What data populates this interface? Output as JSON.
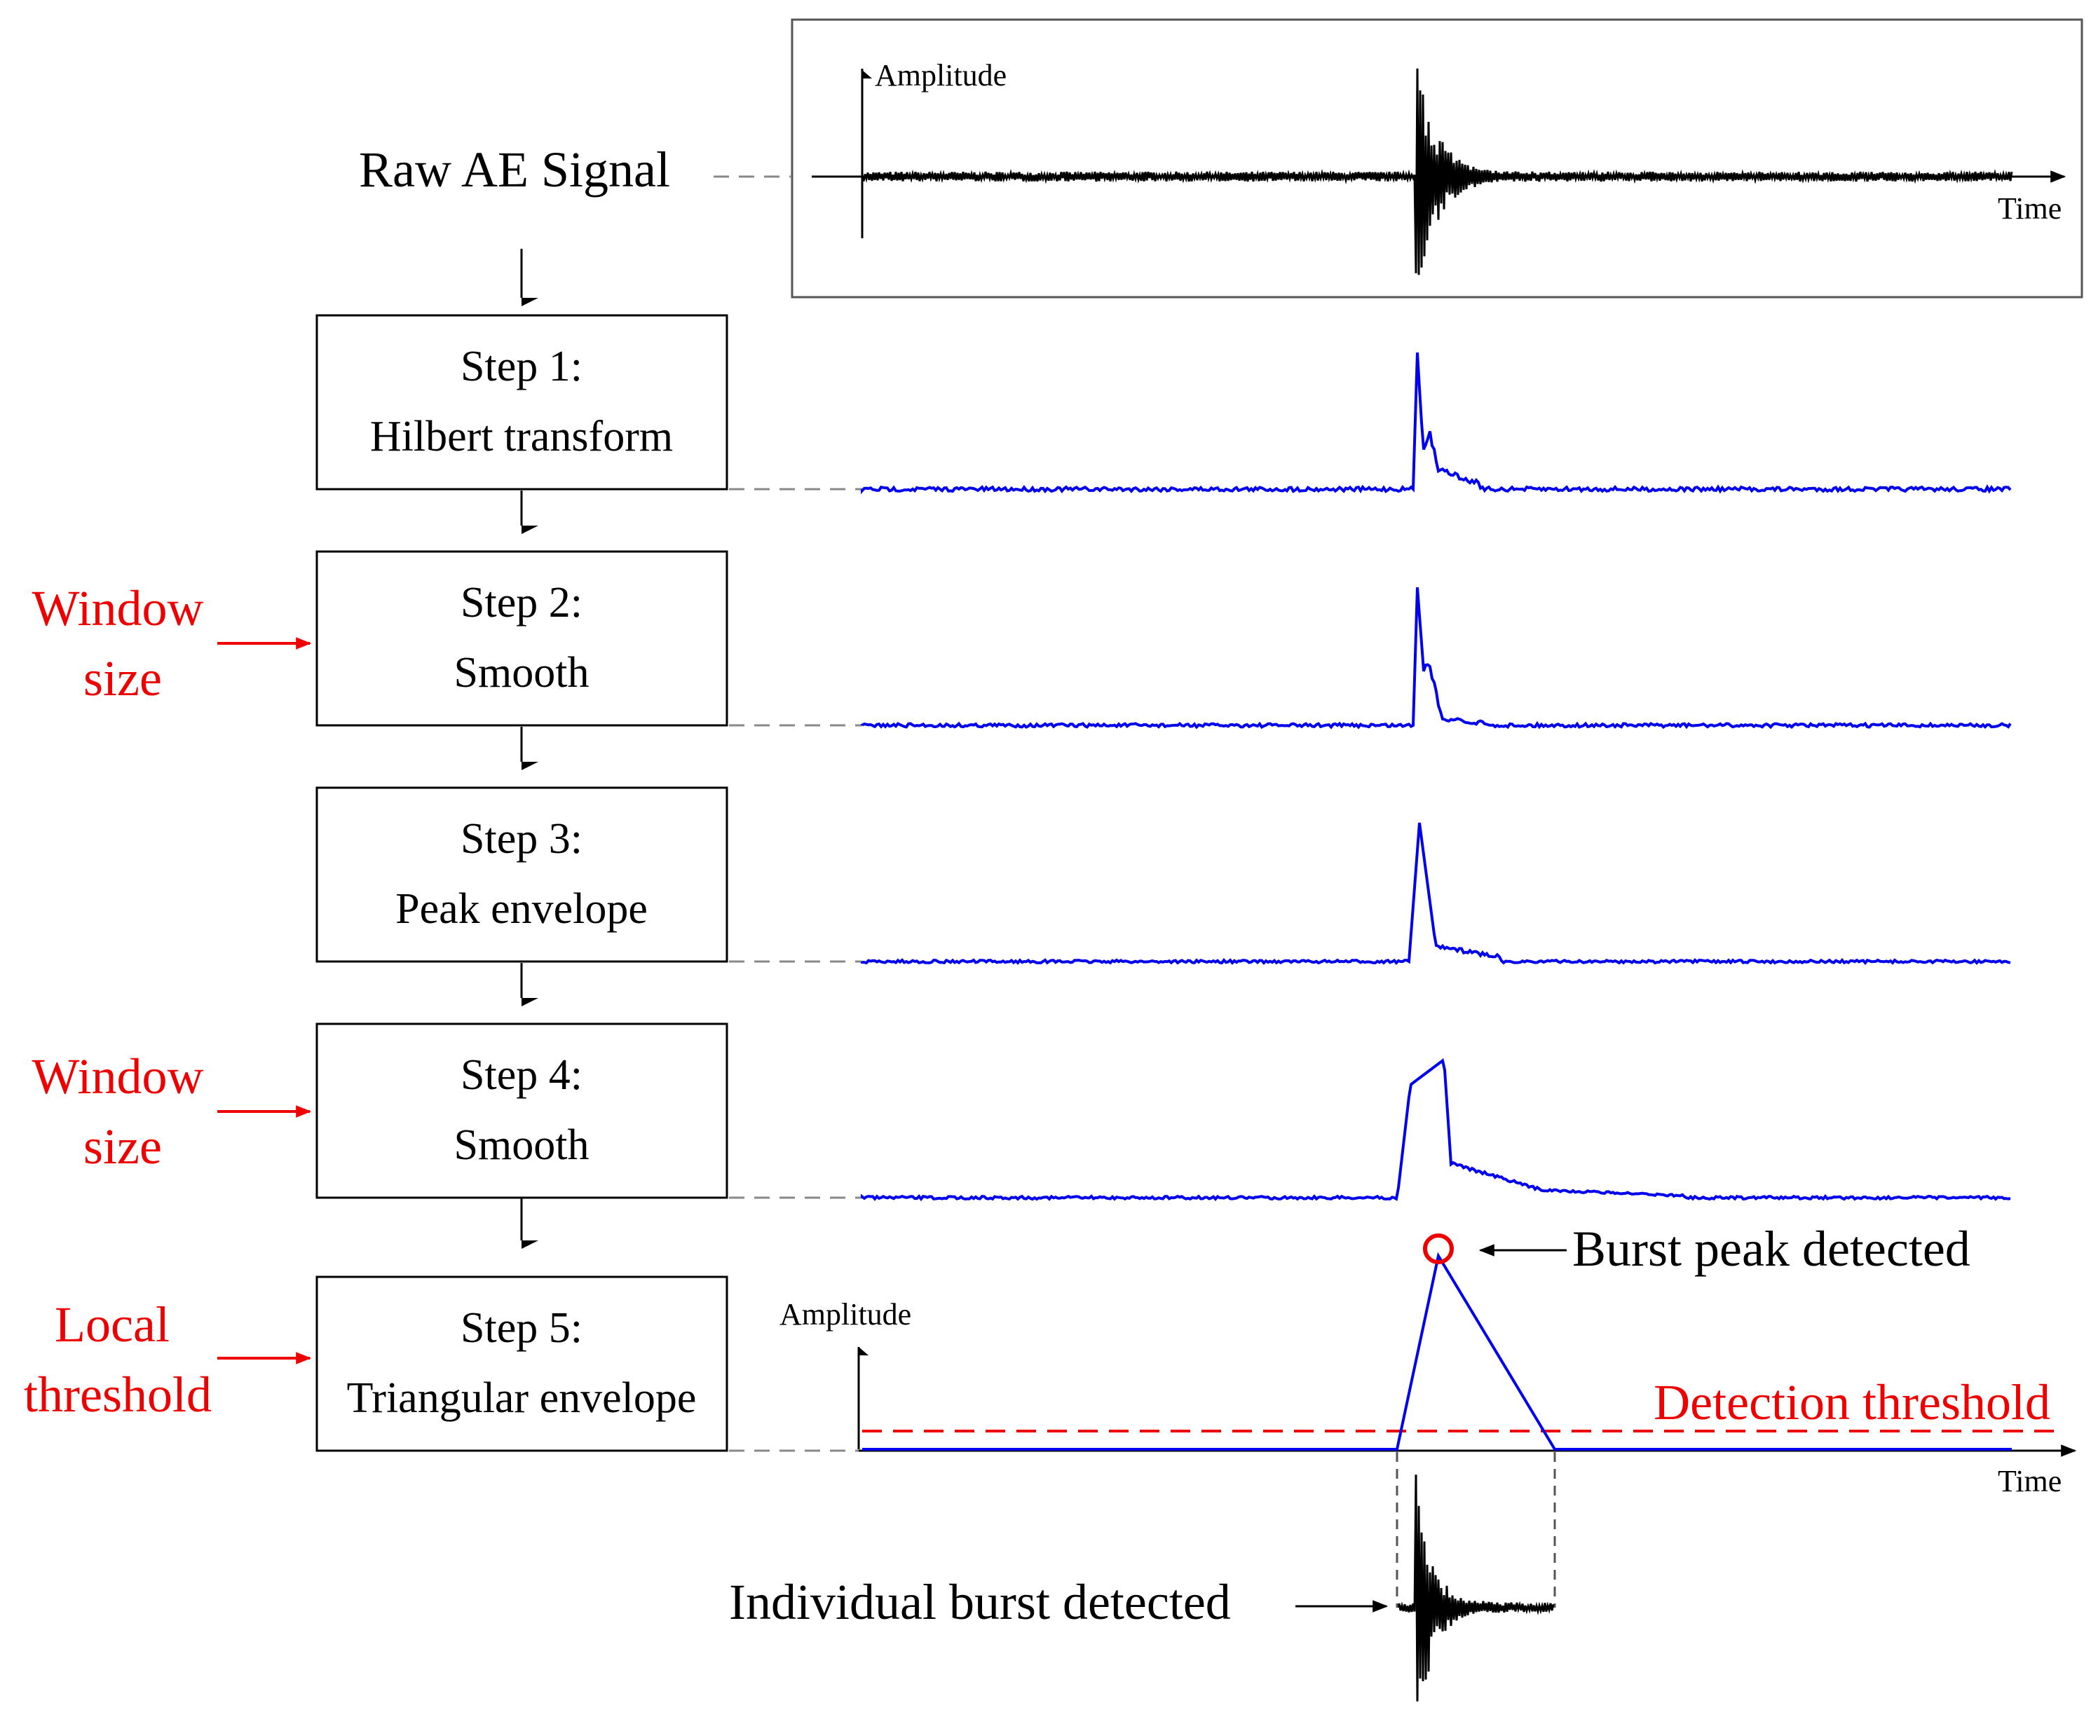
{
  "raw_signal": {
    "label": "Raw AE Signal",
    "y_axis_label": "Amplitude",
    "x_axis_label": "Time"
  },
  "steps": [
    {
      "title": "Step 1:",
      "name": "Hilbert transform"
    },
    {
      "title": "Step 2:",
      "name": "Smooth"
    },
    {
      "title": "Step 3:",
      "name": "Peak envelope"
    },
    {
      "title": "Step 4:",
      "name": "Smooth"
    },
    {
      "title": "Step 5:",
      "name": "Triangular envelope"
    }
  ],
  "parameters": {
    "step2": [
      "Window",
      "size"
    ],
    "step4": [
      "Window",
      "size"
    ],
    "step5": [
      "Local",
      "threshold"
    ]
  },
  "final_plot": {
    "y_axis_label": "Amplitude",
    "x_axis_label": "Time",
    "threshold_label": "Detection threshold",
    "peak_label": "Burst peak detected",
    "burst_label": "Individual burst detected"
  },
  "colors": {
    "signal_raw": "#000000",
    "signal_processed": "#0000ee",
    "parameter_text": "#ee0000",
    "threshold": "#ee0000",
    "connector": "#888888"
  }
}
